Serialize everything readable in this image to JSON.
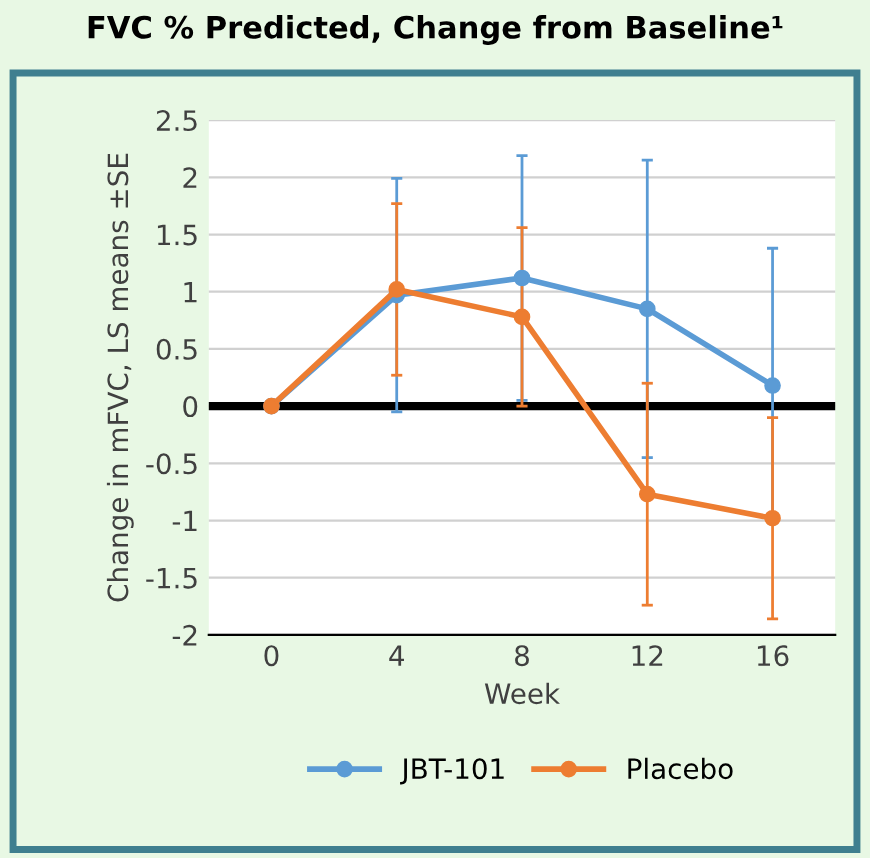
{
  "chart_data": {
    "type": "line",
    "title": "FVC % Predicted, Change from Baseline¹",
    "xlabel": "Week",
    "ylabel": "Change in mFVC, LS means ±SE",
    "categories": [
      "0",
      "4",
      "8",
      "12",
      "16"
    ],
    "series": [
      {
        "name": "JBT-101",
        "color": "#5b9bd5",
        "values": [
          0,
          0.97,
          1.12,
          0.85,
          0.18
        ],
        "errors": [
          null,
          1.02,
          1.07,
          1.3,
          1.2
        ]
      },
      {
        "name": "Placebo",
        "color": "#ed7d31",
        "values": [
          0,
          1.02,
          0.78,
          -0.77,
          -0.98
        ],
        "errors": [
          null,
          0.75,
          0.78,
          0.97,
          0.88
        ]
      }
    ],
    "ylim": [
      -2,
      2.5
    ],
    "yticks": [
      -2,
      -1.5,
      -1,
      -0.5,
      0,
      0.5,
      1,
      1.5,
      2,
      2.5
    ],
    "ref_lines": [
      {
        "axis": "y",
        "value": 0,
        "color": "#000000"
      }
    ],
    "grid": "y",
    "legend": "bottom",
    "marker": "circle",
    "line_style": "solid"
  }
}
